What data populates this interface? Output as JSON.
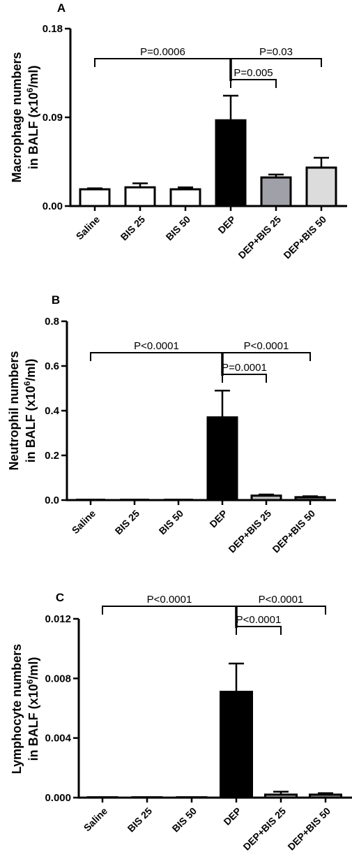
{
  "chart_data": [
    {
      "type": "bar",
      "panel_label": "A",
      "ylabel": "Macrophage numbers in BALF (x10⁶/ml)",
      "ylabel_lines": [
        "Macrophage numbers",
        "in BALF (x10",
        "6",
        "/ml)"
      ],
      "categories": [
        "Saline",
        "BIS 25",
        "BIS 50",
        "DEP",
        "DEP+BIS 25",
        "DEP+BIS 50"
      ],
      "values": [
        0.017,
        0.019,
        0.017,
        0.087,
        0.029,
        0.039
      ],
      "errors": [
        0.001,
        0.004,
        0.002,
        0.025,
        0.003,
        0.01
      ],
      "bar_colors": [
        "#ffffff",
        "#ffffff",
        "#ffffff",
        "#000000",
        "#a0a0a8",
        "#dcdcdc"
      ],
      "ylim": [
        0,
        0.18
      ],
      "yticks": [
        "0.00",
        "0.09",
        "0.18"
      ],
      "yticks_values": [
        0,
        0.09,
        0.18
      ],
      "comparisons": [
        {
          "from": 0,
          "to": 3,
          "label": "P=0.0006"
        },
        {
          "from": 3,
          "to": 5,
          "label": "P=0.03"
        },
        {
          "from": 3,
          "to": 4,
          "label": "P=0.005"
        }
      ]
    },
    {
      "type": "bar",
      "panel_label": "B",
      "ylabel": "Neutrophil numbers in BALF (x10⁶/ml)",
      "ylabel_lines": [
        "Neutrophil numbers",
        "in BALF (x10",
        "6",
        "/ml)"
      ],
      "categories": [
        "Saline",
        "BIS 25",
        "BIS 50",
        "DEP",
        "DEP+BIS 25",
        "DEP+BIS 50"
      ],
      "values": [
        0.0,
        0.0,
        0.0,
        0.37,
        0.02,
        0.013
      ],
      "errors": [
        0.0,
        0.0,
        0.0,
        0.12,
        0.005,
        0.004
      ],
      "bar_colors": [
        "#ffffff",
        "#ffffff",
        "#ffffff",
        "#000000",
        "#bdbdbd",
        "#6e6e6e"
      ],
      "ylim": [
        0,
        0.8
      ],
      "yticks": [
        "0.0",
        "0.2",
        "0.4",
        "0.6",
        "0.8"
      ],
      "yticks_values": [
        0,
        0.2,
        0.4,
        0.6,
        0.8
      ],
      "comparisons": [
        {
          "from": 0,
          "to": 3,
          "label": "P<0.0001"
        },
        {
          "from": 3,
          "to": 5,
          "label": "P<0.0001"
        },
        {
          "from": 3,
          "to": 4,
          "label": "P=0.0001"
        }
      ]
    },
    {
      "type": "bar",
      "panel_label": "C",
      "ylabel": "Lymphocyte numbers in BALF (x10⁶/ml)",
      "ylabel_lines": [
        "Lymphocyte numbers",
        "in BALF (x10",
        "6",
        "/ml)"
      ],
      "categories": [
        "Saline",
        "BIS 25",
        "BIS 50",
        "DEP",
        "DEP+BIS 25",
        "DEP+BIS 50"
      ],
      "values": [
        0.0,
        0.0,
        0.0,
        0.0071,
        0.0002,
        0.0002
      ],
      "errors": [
        0.0,
        0.0,
        0.0,
        0.0019,
        0.0002,
        0.0001
      ],
      "bar_colors": [
        "#ffffff",
        "#ffffff",
        "#ffffff",
        "#000000",
        "#bdbdbd",
        "#9a9a9a"
      ],
      "ylim": [
        0,
        0.012
      ],
      "yticks": [
        "0.000",
        "0.004",
        "0.008",
        "0.012"
      ],
      "yticks_values": [
        0,
        0.004,
        0.008,
        0.012
      ],
      "comparisons": [
        {
          "from": 0,
          "to": 3,
          "label": "P<0.0001"
        },
        {
          "from": 3,
          "to": 5,
          "label": "P<0.0001"
        },
        {
          "from": 3,
          "to": 4,
          "label": "P<0.0001"
        }
      ]
    }
  ]
}
